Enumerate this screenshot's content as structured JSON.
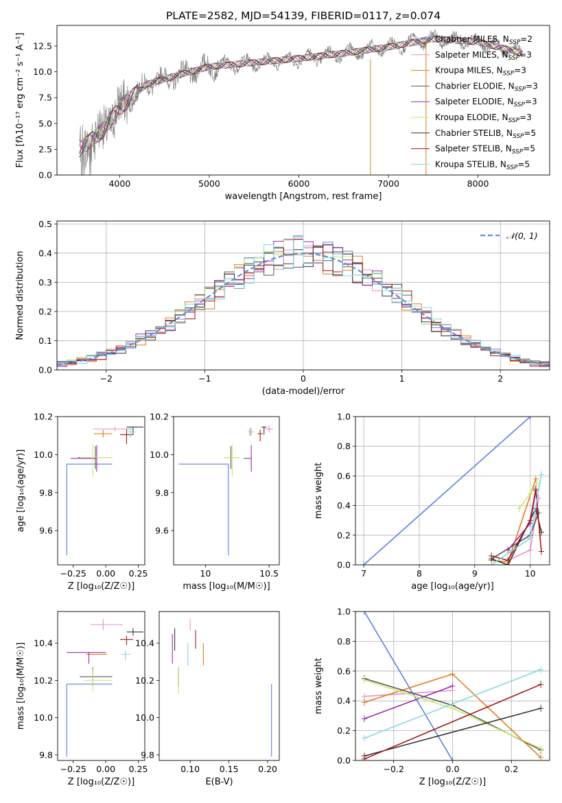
{
  "title": "PLATE=2582, MJD=54139, FIBERID=0117, z=0.074",
  "colors": {
    "c1": "#5b7fdc",
    "c2": "#e88ecb",
    "c3": "#e07b1a",
    "c4": "#555555",
    "c5": "#9b2aa8",
    "c6": "#c5e86a",
    "c7": "#333333",
    "c8": "#a31515",
    "c9": "#80d8de",
    "data": "#808080",
    "grid": "#b0b0b0",
    "normal": "#5b8fd6"
  },
  "chart_data": [
    {
      "id": "spectrum",
      "type": "line",
      "xlabel": "wavelength [Angstrom, rest frame]",
      "ylabel": "Flux [fλ10⁻¹⁷ erg cm⁻² s⁻¹ A⁻¹]",
      "xlim": [
        3300,
        8800
      ],
      "ylim": [
        0,
        14.5
      ],
      "xticks": [
        4000,
        5000,
        6000,
        7000,
        8000
      ],
      "yticks": [
        0.0,
        2.5,
        5.0,
        7.5,
        10.0,
        12.5
      ],
      "grid": false,
      "legend_position": "upper-right",
      "continuum": {
        "x": [
          3550,
          3800,
          4000,
          4300,
          4700,
          5000,
          5500,
          6000,
          6500,
          7000,
          7500,
          8000,
          8500
        ],
        "y": [
          2.5,
          4.2,
          6.5,
          8.8,
          9.8,
          10.5,
          10.9,
          11.3,
          11.8,
          12.4,
          13.2,
          12.9,
          11.8
        ]
      },
      "series": [
        {
          "name": "Chabrier MILES, N",
          "sub": "SSP",
          "tail": "=2",
          "color": "c1"
        },
        {
          "name": "Salpeter MILES, N",
          "sub": "SSP",
          "tail": "=3",
          "color": "c2"
        },
        {
          "name": "Kroupa MILES, N",
          "sub": "SSP",
          "tail": "=3",
          "color": "c3"
        },
        {
          "name": "Chabrier ELODIE, N",
          "sub": "SSP",
          "tail": "=3",
          "color": "c4"
        },
        {
          "name": "Salpeter ELODIE, N",
          "sub": "SSP",
          "tail": "=3",
          "color": "c5"
        },
        {
          "name": "Kroupa ELODIE, N",
          "sub": "SSP",
          "tail": "=3",
          "color": "c6"
        },
        {
          "name": "Chabrier STELIB, N",
          "sub": "SSP",
          "tail": "=5",
          "color": "c7"
        },
        {
          "name": "Salpeter STELIB, N",
          "sub": "SSP",
          "tail": "=5",
          "color": "c8"
        },
        {
          "name": "Kroupa STELIB, N",
          "sub": "SSP",
          "tail": "=5",
          "color": "c9"
        }
      ]
    },
    {
      "id": "residuals",
      "type": "line",
      "xlabel": "(data-model)/error",
      "ylabel": "Normed distribution",
      "xlim": [
        -2.5,
        2.5
      ],
      "ylim": [
        0,
        0.51
      ],
      "xticks": [
        -2,
        -1,
        0,
        1,
        2
      ],
      "yticks": [
        0.0,
        0.1,
        0.2,
        0.3,
        0.4,
        0.5
      ],
      "grid": true,
      "legend_position": "upper-right",
      "legend": "𝒩(0, 1)",
      "bin_width": 0.1
    },
    {
      "id": "age_vs_Z",
      "type": "scatter",
      "xlabel": "Z [log₁₀(Z/Z☉)]",
      "ylabel": "age  [log₁₀(age/yr)]",
      "xlim": [
        -0.37,
        0.3
      ],
      "ylim": [
        9.42,
        10.2
      ],
      "xticks": [
        -0.25,
        0.0,
        0.25
      ],
      "xticklabels": [
        "−0.25",
        "0.00",
        "0.25"
      ],
      "yticks": [
        9.6,
        9.8,
        10.0,
        10.2
      ],
      "grid": false,
      "points": [
        {
          "c": "c1",
          "x": -0.3,
          "xerr": [
            0,
            0.35
          ],
          "y": 9.95,
          "yerr": [
            0.48,
            0
          ]
        },
        {
          "c": "c2",
          "x": 0.07,
          "xerr": [
            0.17,
            0.13
          ],
          "y": 10.135,
          "yerr": [
            0.01,
            0.01
          ]
        },
        {
          "c": "c3",
          "x": -0.02,
          "xerr": [
            0.07,
            0.07
          ],
          "y": 10.11,
          "yerr": [
            0.02,
            0.02
          ]
        },
        {
          "c": "c4",
          "x": -0.08,
          "xerr": [
            0.13,
            0.12
          ],
          "y": 9.985,
          "yerr": [
            0.06,
            0.06
          ]
        },
        {
          "c": "c5",
          "x": -0.07,
          "xerr": [
            0.2,
            0.0
          ],
          "y": 9.98,
          "yerr": [
            0.07,
            0.07
          ]
        },
        {
          "c": "c6",
          "x": -0.1,
          "xerr": [
            0.1,
            0.15
          ],
          "y": 9.985,
          "yerr": [
            0.1,
            0.07
          ]
        },
        {
          "c": "c7",
          "x": 0.21,
          "xerr": [
            0.05,
            0.08
          ],
          "y": 10.145,
          "yerr": [
            0.04,
            0.0
          ]
        },
        {
          "c": "c8",
          "x": 0.16,
          "xerr": [
            0.05,
            0.05
          ],
          "y": 10.105,
          "yerr": [
            0.05,
            0.03
          ]
        },
        {
          "c": "c9",
          "x": 0.19,
          "xerr": [
            0.03,
            0.04
          ],
          "y": 10.12,
          "yerr": [
            0.03,
            0.02
          ]
        }
      ]
    },
    {
      "id": "age_vs_mass",
      "type": "scatter",
      "xlabel": "mass [log₁₀(M/M☉)]",
      "ylabel": "",
      "xlim": [
        9.75,
        10.58
      ],
      "ylim": [
        9.42,
        10.2
      ],
      "xticks": [
        10.0,
        10.5
      ],
      "yticks": [
        9.6,
        9.8,
        10.0,
        10.2
      ],
      "grid": false,
      "points": [
        {
          "c": "c1",
          "x": 10.18,
          "xerr": [
            0.39,
            0
          ],
          "y": 9.95,
          "yerr": [
            0.48,
            0
          ]
        },
        {
          "c": "c2",
          "x": 10.5,
          "xerr": [
            0.03,
            0.03
          ],
          "y": 10.135,
          "yerr": [
            0.02,
            0.02
          ]
        },
        {
          "c": "c3",
          "x": 10.35,
          "xerr": [
            0.0,
            0.0
          ],
          "y": 10.11,
          "yerr": [
            0.01,
            0.03
          ]
        },
        {
          "c": "c4",
          "x": 10.2,
          "xerr": [
            0.05,
            0.05
          ],
          "y": 9.985,
          "yerr": [
            0.06,
            0.06
          ]
        },
        {
          "c": "c5",
          "x": 10.36,
          "xerr": [
            0.06,
            0.0
          ],
          "y": 9.98,
          "yerr": [
            0.07,
            0.07
          ]
        },
        {
          "c": "c6",
          "x": 10.21,
          "xerr": [
            0.06,
            0.06
          ],
          "y": 9.985,
          "yerr": [
            0.1,
            0.07
          ]
        },
        {
          "c": "c7",
          "x": 10.46,
          "xerr": [
            0.02,
            0.02
          ],
          "y": 10.145,
          "yerr": [
            0.04,
            0.0
          ]
        },
        {
          "c": "c8",
          "x": 10.43,
          "xerr": [
            0.02,
            0.02
          ],
          "y": 10.11,
          "yerr": [
            0.04,
            0.02
          ]
        },
        {
          "c": "c9",
          "x": 10.36,
          "xerr": [
            0.03,
            0.02
          ],
          "y": 10.12,
          "yerr": [
            0.02,
            0.02
          ]
        }
      ]
    },
    {
      "id": "mass_weight_vs_age",
      "type": "line",
      "xlabel": "age  [log₁₀(age/yr)]",
      "ylabel": "mass weight",
      "xlim": [
        6.85,
        10.35
      ],
      "ylim": [
        0,
        1
      ],
      "xticks": [
        7,
        8,
        9,
        10
      ],
      "yticks": [
        0.0,
        0.2,
        0.4,
        0.6,
        0.8,
        1.0
      ],
      "grid": true,
      "series": [
        {
          "c": "c1",
          "x": [
            7.0,
            10.0
          ],
          "y": [
            0.0,
            1.0
          ]
        },
        {
          "c": "c2",
          "x": [
            9.6,
            10.0,
            10.15
          ],
          "y": [
            0.03,
            0.1,
            0.45
          ]
        },
        {
          "c": "c3",
          "x": [
            9.3,
            9.6,
            10.1
          ],
          "y": [
            0.03,
            0.02,
            0.58
          ]
        },
        {
          "c": "c4",
          "x": [
            9.3,
            10.0,
            10.15
          ],
          "y": [
            0.04,
            0.2,
            0.35
          ]
        },
        {
          "c": "c5",
          "x": [
            9.6,
            10.0,
            10.1
          ],
          "y": [
            0.1,
            0.28,
            0.5
          ]
        },
        {
          "c": "c6",
          "x": [
            9.8,
            10.0,
            10.12
          ],
          "y": [
            0.38,
            0.48,
            0.55
          ]
        },
        {
          "c": "c7",
          "x": [
            9.3,
            9.6,
            10.1,
            10.2
          ],
          "y": [
            0.04,
            0.0,
            0.38,
            0.22
          ]
        },
        {
          "c": "c8",
          "x": [
            9.3,
            9.6,
            10.0,
            10.1,
            10.2
          ],
          "y": [
            0.06,
            0.03,
            0.3,
            0.51,
            0.09
          ]
        },
        {
          "c": "c9",
          "x": [
            9.3,
            10.0,
            10.2
          ],
          "y": [
            0.0,
            0.18,
            0.61
          ]
        }
      ]
    },
    {
      "id": "mass_vs_Z",
      "type": "scatter",
      "xlabel": "Z [log₁₀(Z/Z☉)]",
      "ylabel": "mass [log₁₀(M/M☉)]",
      "xlim": [
        -0.37,
        0.3
      ],
      "ylim": [
        9.77,
        10.57
      ],
      "xticks": [
        -0.25,
        0.0,
        0.25
      ],
      "xticklabels": [
        "−0.25",
        "0.00",
        "0.25"
      ],
      "yticks": [
        9.8,
        10.0,
        10.2,
        10.4
      ],
      "grid": false,
      "points": [
        {
          "c": "c1",
          "x": -0.3,
          "xerr": [
            0,
            0.35
          ],
          "y": 10.18,
          "yerr": [
            0.39,
            0
          ]
        },
        {
          "c": "c2",
          "x": -0.02,
          "xerr": [
            0.1,
            0.15
          ],
          "y": 10.5,
          "yerr": [
            0.03,
            0.03
          ]
        },
        {
          "c": "c3",
          "x": -0.07,
          "xerr": [
            0.08,
            0.08
          ],
          "y": 10.34,
          "yerr": [
            0.0,
            0.0
          ]
        },
        {
          "c": "c4",
          "x": -0.1,
          "xerr": [
            0.1,
            0.15
          ],
          "y": 10.22,
          "yerr": [
            0.05,
            0.05
          ]
        },
        {
          "c": "c5",
          "x": -0.13,
          "xerr": [
            0.17,
            0.13
          ],
          "y": 10.35,
          "yerr": [
            0.06,
            0.0
          ]
        },
        {
          "c": "c6",
          "x": -0.1,
          "xerr": [
            0.07,
            0.15
          ],
          "y": 10.2,
          "yerr": [
            0.06,
            0.06
          ]
        },
        {
          "c": "c7",
          "x": 0.21,
          "xerr": [
            0.05,
            0.08
          ],
          "y": 10.46,
          "yerr": [
            0.02,
            0.02
          ]
        },
        {
          "c": "c8",
          "x": 0.16,
          "xerr": [
            0.05,
            0.05
          ],
          "y": 10.42,
          "yerr": [
            0.03,
            0.02
          ]
        },
        {
          "c": "c9",
          "x": 0.15,
          "xerr": [
            0.03,
            0.04
          ],
          "y": 10.34,
          "yerr": [
            0.03,
            0.02
          ]
        }
      ]
    },
    {
      "id": "mass_vs_ebv",
      "type": "scatter",
      "xlabel": "E(B-V)",
      "ylabel": "",
      "xlim": [
        0.06,
        0.215
      ],
      "ylim": [
        9.77,
        10.57
      ],
      "xticks": [
        0.1,
        0.15,
        0.2
      ],
      "xticklabels": [
        "0.10",
        "0.15",
        "0.20"
      ],
      "yticks": [
        9.8,
        10.0,
        10.2,
        10.4
      ],
      "grid": false,
      "points": [
        {
          "c": "c1",
          "x": 0.205,
          "xerr": [
            0,
            0
          ],
          "y": 10.18,
          "yerr": [
            0.39,
            0
          ]
        },
        {
          "c": "c2",
          "x": 0.1,
          "xerr": [
            0,
            0
          ],
          "y": 10.5,
          "yerr": [
            0.03,
            0.03
          ]
        },
        {
          "c": "c3",
          "x": 0.117,
          "xerr": [
            0,
            0
          ],
          "y": 10.34,
          "yerr": [
            0.06,
            0.06
          ]
        },
        {
          "c": "c4",
          "x": 0.085,
          "xerr": [
            0,
            0
          ],
          "y": 10.22,
          "yerr": [
            0.05,
            0.05
          ]
        },
        {
          "c": "c5",
          "x": 0.077,
          "xerr": [
            0,
            0
          ],
          "y": 10.37,
          "yerr": [
            0.08,
            0.08
          ]
        },
        {
          "c": "c6",
          "x": 0.085,
          "xerr": [
            0,
            0
          ],
          "y": 10.2,
          "yerr": [
            0.07,
            0.07
          ]
        },
        {
          "c": "c7",
          "x": 0.08,
          "xerr": [
            0,
            0
          ],
          "y": 10.42,
          "yerr": [
            0.06,
            0.06
          ]
        },
        {
          "c": "c8",
          "x": 0.107,
          "xerr": [
            0,
            0
          ],
          "y": 10.42,
          "yerr": [
            0.05,
            0.05
          ]
        },
        {
          "c": "c9",
          "x": 0.097,
          "xerr": [
            0,
            0
          ],
          "y": 10.34,
          "yerr": [
            0.06,
            0.06
          ]
        }
      ]
    },
    {
      "id": "mass_weight_vs_Z",
      "type": "line",
      "xlabel": "Z [log₁₀(Z/Z☉)]",
      "ylabel": "mass weight",
      "xlim": [
        -0.33,
        0.33
      ],
      "ylim": [
        0,
        1
      ],
      "xticks": [
        -0.2,
        0.0,
        0.2
      ],
      "xticklabels": [
        "−0.2",
        "0.0",
        "0.2"
      ],
      "yticks": [
        0.0,
        0.2,
        0.4,
        0.6,
        0.8,
        1.0
      ],
      "grid": true,
      "series": [
        {
          "c": "c1",
          "x": [
            -0.3,
            0.0
          ],
          "y": [
            1.0,
            0.0
          ]
        },
        {
          "c": "c2",
          "x": [
            -0.3,
            0.0
          ],
          "y": [
            0.43,
            0.47
          ]
        },
        {
          "c": "c3",
          "x": [
            -0.3,
            0.0,
            0.3
          ],
          "y": [
            0.39,
            0.58,
            0.02
          ]
        },
        {
          "c": "c4",
          "x": [
            -0.3,
            0.0,
            0.3
          ],
          "y": [
            0.55,
            0.37,
            0.07
          ]
        },
        {
          "c": "c5",
          "x": [
            -0.3,
            0.0
          ],
          "y": [
            0.28,
            0.5
          ]
        },
        {
          "c": "c6",
          "x": [
            -0.3,
            0.0,
            0.3
          ],
          "y": [
            0.54,
            0.35,
            0.08
          ]
        },
        {
          "c": "c7",
          "x": [
            -0.3,
            0.3
          ],
          "y": [
            0.03,
            0.35
          ]
        },
        {
          "c": "c8",
          "x": [
            -0.3,
            0.3
          ],
          "y": [
            0.01,
            0.51
          ]
        },
        {
          "c": "c9",
          "x": [
            -0.3,
            0.3
          ],
          "y": [
            0.15,
            0.61
          ]
        }
      ]
    }
  ]
}
